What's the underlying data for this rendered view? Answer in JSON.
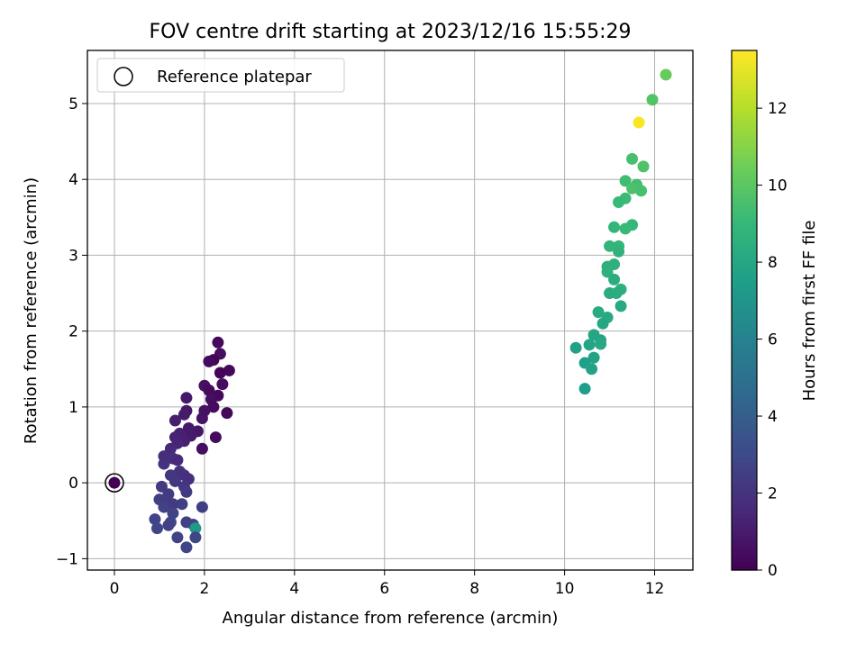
{
  "chart_data": {
    "type": "scatter",
    "title": "FOV centre drift starting at 2023/12/16 15:55:29",
    "xlabel": "Angular distance from reference (arcmin)",
    "ylabel": "Rotation from reference (arcmin)",
    "xlim": [
      -0.6,
      12.85
    ],
    "ylim": [
      -1.15,
      5.7
    ],
    "xticks": [
      0,
      2,
      4,
      6,
      8,
      10,
      12
    ],
    "yticks": [
      -1,
      0,
      1,
      2,
      3,
      4,
      5
    ],
    "grid": true,
    "colormap": "viridis",
    "colorbar": {
      "label": "Hours from first FF file",
      "range": [
        0,
        13.5
      ],
      "ticks": [
        0,
        2,
        4,
        6,
        8,
        10,
        12
      ]
    },
    "legend": {
      "placement": "top-left",
      "entries": [
        {
          "label": "Reference platepar",
          "marker": "open-circle"
        }
      ]
    },
    "reference_point": {
      "x": 0,
      "y": 0
    },
    "points": [
      {
        "x": 0.0,
        "y": 0.0,
        "h": 0.0
      },
      {
        "x": 1.95,
        "y": 0.45,
        "h": 0.5
      },
      {
        "x": 2.25,
        "y": 0.6,
        "h": 0.4
      },
      {
        "x": 2.5,
        "y": 0.92,
        "h": 0.3
      },
      {
        "x": 2.3,
        "y": 1.85,
        "h": 0.3
      },
      {
        "x": 2.35,
        "y": 1.7,
        "h": 0.5
      },
      {
        "x": 2.2,
        "y": 1.62,
        "h": 0.2
      },
      {
        "x": 2.1,
        "y": 1.6,
        "h": 0.4
      },
      {
        "x": 2.55,
        "y": 1.48,
        "h": 0.3
      },
      {
        "x": 2.35,
        "y": 1.45,
        "h": 0.2
      },
      {
        "x": 2.4,
        "y": 1.3,
        "h": 0.5
      },
      {
        "x": 2.0,
        "y": 1.28,
        "h": 0.6
      },
      {
        "x": 2.1,
        "y": 1.22,
        "h": 0.4
      },
      {
        "x": 2.3,
        "y": 1.15,
        "h": 0.3
      },
      {
        "x": 2.15,
        "y": 1.1,
        "h": 0.5
      },
      {
        "x": 2.2,
        "y": 1.0,
        "h": 0.4
      },
      {
        "x": 2.0,
        "y": 0.95,
        "h": 0.6
      },
      {
        "x": 1.95,
        "y": 0.85,
        "h": 0.7
      },
      {
        "x": 1.6,
        "y": 1.12,
        "h": 0.9
      },
      {
        "x": 1.6,
        "y": 0.95,
        "h": 0.8
      },
      {
        "x": 1.55,
        "y": 0.9,
        "h": 1.0
      },
      {
        "x": 1.35,
        "y": 0.82,
        "h": 1.1
      },
      {
        "x": 1.65,
        "y": 0.72,
        "h": 0.9
      },
      {
        "x": 1.85,
        "y": 0.68,
        "h": 0.8
      },
      {
        "x": 1.45,
        "y": 0.65,
        "h": 1.2
      },
      {
        "x": 1.7,
        "y": 0.62,
        "h": 1.0
      },
      {
        "x": 1.35,
        "y": 0.6,
        "h": 1.3
      },
      {
        "x": 1.55,
        "y": 0.55,
        "h": 1.2
      },
      {
        "x": 1.4,
        "y": 0.52,
        "h": 1.4
      },
      {
        "x": 1.25,
        "y": 0.45,
        "h": 1.6
      },
      {
        "x": 1.1,
        "y": 0.35,
        "h": 1.7
      },
      {
        "x": 1.3,
        "y": 0.32,
        "h": 1.8
      },
      {
        "x": 1.4,
        "y": 0.3,
        "h": 1.6
      },
      {
        "x": 1.1,
        "y": 0.25,
        "h": 1.9
      },
      {
        "x": 1.45,
        "y": 0.15,
        "h": 2.0
      },
      {
        "x": 1.25,
        "y": 0.1,
        "h": 2.1
      },
      {
        "x": 1.55,
        "y": 0.1,
        "h": 1.9
      },
      {
        "x": 1.65,
        "y": 0.05,
        "h": 1.8
      },
      {
        "x": 1.35,
        "y": 0.02,
        "h": 2.2
      },
      {
        "x": 1.05,
        "y": -0.05,
        "h": 2.3
      },
      {
        "x": 1.55,
        "y": -0.05,
        "h": 2.2
      },
      {
        "x": 1.6,
        "y": -0.12,
        "h": 2.3
      },
      {
        "x": 1.2,
        "y": -0.15,
        "h": 2.4
      },
      {
        "x": 1.0,
        "y": -0.22,
        "h": 2.5
      },
      {
        "x": 1.15,
        "y": -0.25,
        "h": 2.4
      },
      {
        "x": 1.3,
        "y": -0.28,
        "h": 2.3
      },
      {
        "x": 1.5,
        "y": -0.28,
        "h": 2.5
      },
      {
        "x": 1.1,
        "y": -0.32,
        "h": 2.6
      },
      {
        "x": 1.95,
        "y": -0.32,
        "h": 2.5
      },
      {
        "x": 1.3,
        "y": -0.4,
        "h": 2.7
      },
      {
        "x": 0.9,
        "y": -0.48,
        "h": 2.7
      },
      {
        "x": 1.6,
        "y": -0.52,
        "h": 2.6
      },
      {
        "x": 1.25,
        "y": -0.52,
        "h": 2.8
      },
      {
        "x": 1.75,
        "y": -0.55,
        "h": 2.7
      },
      {
        "x": 1.2,
        "y": -0.56,
        "h": 2.6
      },
      {
        "x": 0.95,
        "y": -0.6,
        "h": 2.8
      },
      {
        "x": 1.8,
        "y": -0.6,
        "h": 7.2
      },
      {
        "x": 1.8,
        "y": -0.72,
        "h": 2.8
      },
      {
        "x": 1.4,
        "y": -0.72,
        "h": 2.7
      },
      {
        "x": 1.6,
        "y": -0.85,
        "h": 2.8
      },
      {
        "x": 12.25,
        "y": 5.38,
        "h": 10.3
      },
      {
        "x": 11.95,
        "y": 5.05,
        "h": 9.8
      },
      {
        "x": 11.65,
        "y": 4.75,
        "h": 13.4
      },
      {
        "x": 11.5,
        "y": 4.27,
        "h": 9.5
      },
      {
        "x": 11.75,
        "y": 4.17,
        "h": 9.7
      },
      {
        "x": 11.35,
        "y": 3.98,
        "h": 9.3
      },
      {
        "x": 11.6,
        "y": 3.93,
        "h": 9.4
      },
      {
        "x": 11.5,
        "y": 3.88,
        "h": 9.6
      },
      {
        "x": 11.7,
        "y": 3.85,
        "h": 9.5
      },
      {
        "x": 11.35,
        "y": 3.75,
        "h": 9.2
      },
      {
        "x": 11.2,
        "y": 3.7,
        "h": 9.1
      },
      {
        "x": 11.5,
        "y": 3.4,
        "h": 9.0
      },
      {
        "x": 11.1,
        "y": 3.37,
        "h": 8.9
      },
      {
        "x": 11.35,
        "y": 3.35,
        "h": 9.1
      },
      {
        "x": 11.0,
        "y": 3.12,
        "h": 8.8
      },
      {
        "x": 11.2,
        "y": 3.12,
        "h": 8.9
      },
      {
        "x": 11.2,
        "y": 3.05,
        "h": 8.7
      },
      {
        "x": 11.1,
        "y": 2.88,
        "h": 8.6
      },
      {
        "x": 10.95,
        "y": 2.85,
        "h": 8.5
      },
      {
        "x": 10.95,
        "y": 2.78,
        "h": 8.6
      },
      {
        "x": 11.1,
        "y": 2.68,
        "h": 8.4
      },
      {
        "x": 11.25,
        "y": 2.55,
        "h": 8.5
      },
      {
        "x": 11.0,
        "y": 2.5,
        "h": 8.3
      },
      {
        "x": 11.15,
        "y": 2.5,
        "h": 8.4
      },
      {
        "x": 11.25,
        "y": 2.33,
        "h": 8.2
      },
      {
        "x": 10.75,
        "y": 2.25,
        "h": 8.2
      },
      {
        "x": 10.95,
        "y": 2.18,
        "h": 8.1
      },
      {
        "x": 10.85,
        "y": 2.1,
        "h": 8.0
      },
      {
        "x": 10.65,
        "y": 1.95,
        "h": 8.0
      },
      {
        "x": 10.8,
        "y": 1.88,
        "h": 7.9
      },
      {
        "x": 10.55,
        "y": 1.82,
        "h": 7.9
      },
      {
        "x": 10.8,
        "y": 1.83,
        "h": 8.1
      },
      {
        "x": 10.25,
        "y": 1.78,
        "h": 7.7
      },
      {
        "x": 10.65,
        "y": 1.65,
        "h": 7.8
      },
      {
        "x": 10.45,
        "y": 1.58,
        "h": 7.6
      },
      {
        "x": 10.6,
        "y": 1.5,
        "h": 7.8
      },
      {
        "x": 10.45,
        "y": 1.24,
        "h": 7.5
      }
    ]
  }
}
